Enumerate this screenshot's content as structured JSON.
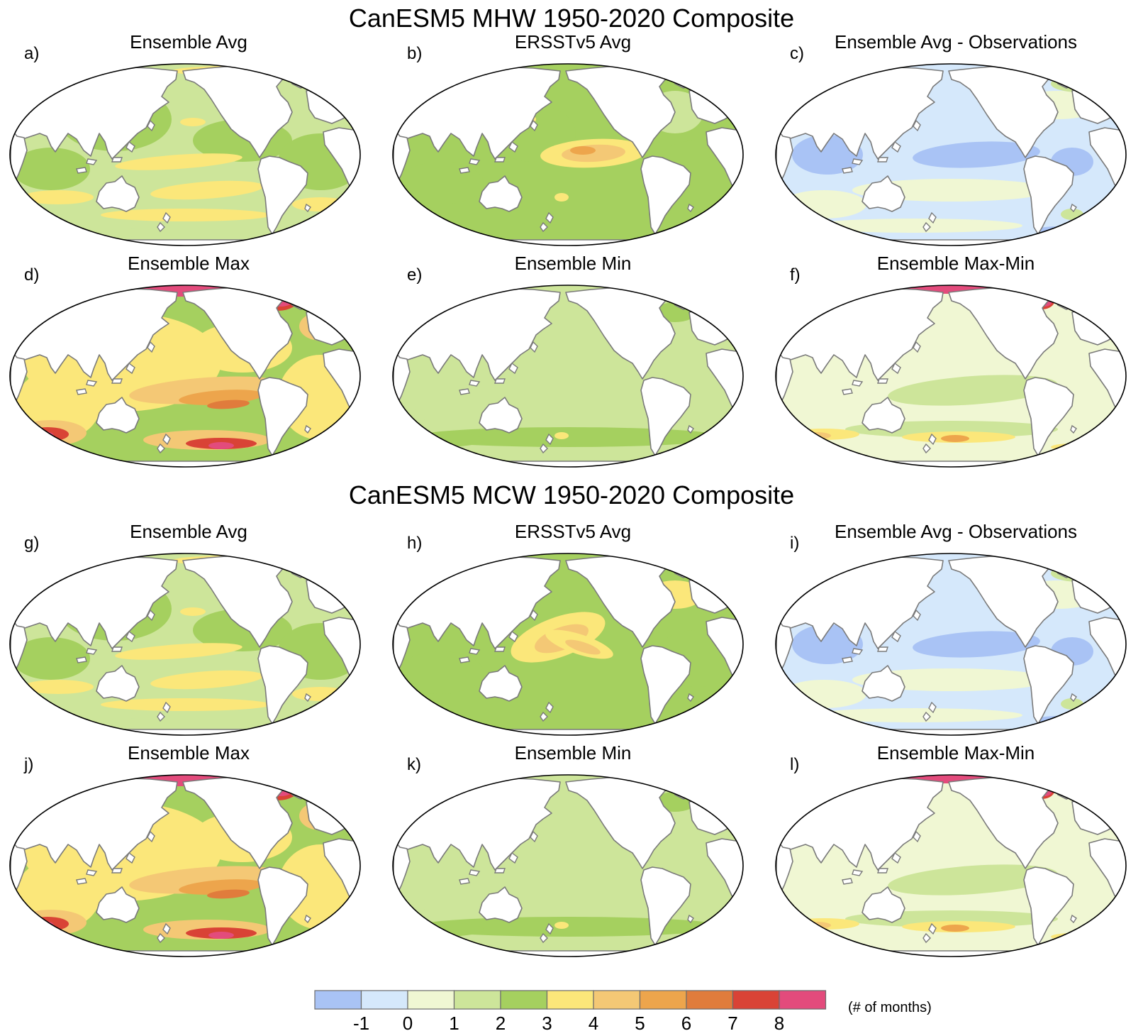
{
  "figure": {
    "sections": [
      {
        "title": "CanESM5 MHW 1950-2020 Composite"
      },
      {
        "title": "CanESM5 MCW 1950-2020 Composite"
      }
    ],
    "panels": [
      {
        "letter": "a)",
        "title": "Ensemble Avg",
        "pattern": "avg"
      },
      {
        "letter": "b)",
        "title": "ERSSTv5 Avg",
        "pattern": "obs_mhw"
      },
      {
        "letter": "c)",
        "title": "Ensemble Avg - Observations",
        "pattern": "diff"
      },
      {
        "letter": "d)",
        "title": "Ensemble Max",
        "pattern": "max"
      },
      {
        "letter": "e)",
        "title": "Ensemble Min",
        "pattern": "min"
      },
      {
        "letter": "f)",
        "title": "Ensemble Max-Min",
        "pattern": "range"
      },
      {
        "letter": "g)",
        "title": "Ensemble Avg",
        "pattern": "avg"
      },
      {
        "letter": "h)",
        "title": "ERSSTv5 Avg",
        "pattern": "obs_mcw"
      },
      {
        "letter": "i)",
        "title": "Ensemble Avg - Observations",
        "pattern": "diff"
      },
      {
        "letter": "j)",
        "title": "Ensemble Max",
        "pattern": "max"
      },
      {
        "letter": "k)",
        "title": "Ensemble Min",
        "pattern": "min"
      },
      {
        "letter": "l)",
        "title": "Ensemble Max-Min",
        "pattern": "range"
      }
    ]
  },
  "colorbar": {
    "colors": [
      "#a9c3f5",
      "#d5e8fb",
      "#f0f7d3",
      "#cde59a",
      "#a5d05f",
      "#fbe77a",
      "#f4c875",
      "#eda54c",
      "#e07c3c",
      "#d94336",
      "#e34b7c"
    ],
    "labels": [
      "-1",
      "0",
      "1",
      "2",
      "3",
      "4",
      "5",
      "6",
      "7",
      "8"
    ],
    "units": "(# of months)"
  }
}
